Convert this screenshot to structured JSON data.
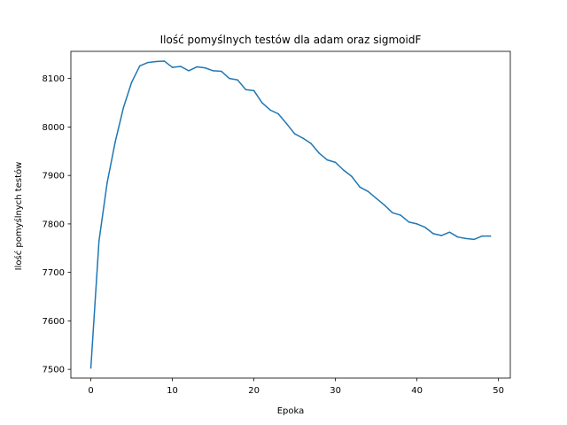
{
  "chart_data": {
    "type": "line",
    "title": "Ilość pomyślnych testów dla adam oraz sigmoidF",
    "xlabel": "Epoka",
    "ylabel": "Ilość pomyślnych testów",
    "xlim": [
      -2.45,
      51.45
    ],
    "ylim": [
      7482,
      8156
    ],
    "xticks": [
      0,
      10,
      20,
      30,
      40,
      50
    ],
    "yticks": [
      7500,
      7600,
      7700,
      7800,
      7900,
      8000,
      8100
    ],
    "grid": false,
    "series": [
      {
        "name": "",
        "color": "#1f77b4",
        "x": [
          0,
          1,
          2,
          3,
          4,
          5,
          6,
          7,
          8,
          9,
          10,
          11,
          12,
          13,
          14,
          15,
          16,
          17,
          18,
          19,
          20,
          21,
          22,
          23,
          24,
          25,
          26,
          27,
          28,
          29,
          30,
          31,
          32,
          33,
          34,
          35,
          36,
          37,
          38,
          39,
          40,
          41,
          42,
          43,
          44,
          45,
          46,
          47,
          48,
          49
        ],
        "values": [
          7503,
          7765,
          7885,
          7970,
          8040,
          8092,
          8126,
          8133,
          8135,
          8136,
          8123,
          8125,
          8116,
          8124,
          8122,
          8116,
          8115,
          8100,
          8097,
          8077,
          8075,
          8050,
          8035,
          8027,
          8007,
          7986,
          7977,
          7966,
          7946,
          7932,
          7927,
          7911,
          7898,
          7876,
          7867,
          7853,
          7839,
          7823,
          7818,
          7804,
          7800,
          7793,
          7780,
          7776,
          7783,
          7773,
          7770,
          7768,
          7775,
          7775
        ]
      }
    ]
  }
}
